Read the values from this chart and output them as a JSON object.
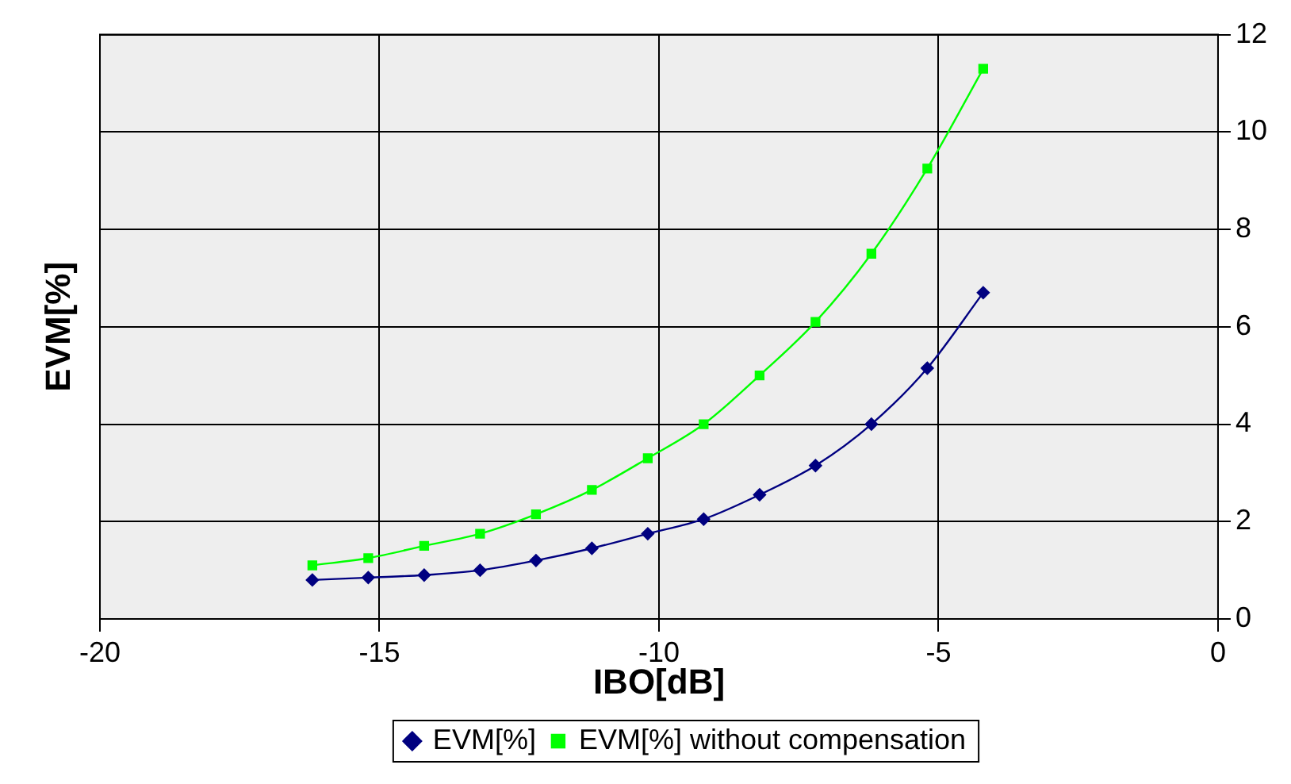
{
  "chart_data": {
    "type": "line",
    "xlabel": "IBO[dB]",
    "ylabel": "EVM[%]",
    "x": [
      -16.2,
      -15.2,
      -14.2,
      -13.2,
      -12.2,
      -11.2,
      -10.2,
      -9.2,
      -8.2,
      -7.2,
      -6.2,
      -5.2,
      -4.2
    ],
    "series": [
      {
        "name": "EVM[%]",
        "color": "#000080",
        "marker": "diamond",
        "values": [
          0.8,
          0.85,
          0.9,
          1.0,
          1.2,
          1.45,
          1.75,
          2.05,
          2.55,
          3.15,
          4.0,
          5.15,
          6.7
        ]
      },
      {
        "name": "EVM[%] without compensation",
        "color": "#00ff00",
        "marker": "square",
        "values": [
          1.1,
          1.25,
          1.5,
          1.75,
          2.15,
          2.65,
          3.3,
          4.0,
          5.0,
          6.1,
          7.5,
          9.25,
          11.3
        ]
      }
    ],
    "xlim": [
      -20,
      0
    ],
    "xticks": [
      -20,
      -15,
      -10,
      -5,
      0
    ],
    "ylim": [
      0,
      12
    ],
    "yticks": [
      0,
      2,
      4,
      6,
      8,
      10,
      12
    ],
    "grid": true,
    "legend": "bottom",
    "line_style": "solid"
  }
}
